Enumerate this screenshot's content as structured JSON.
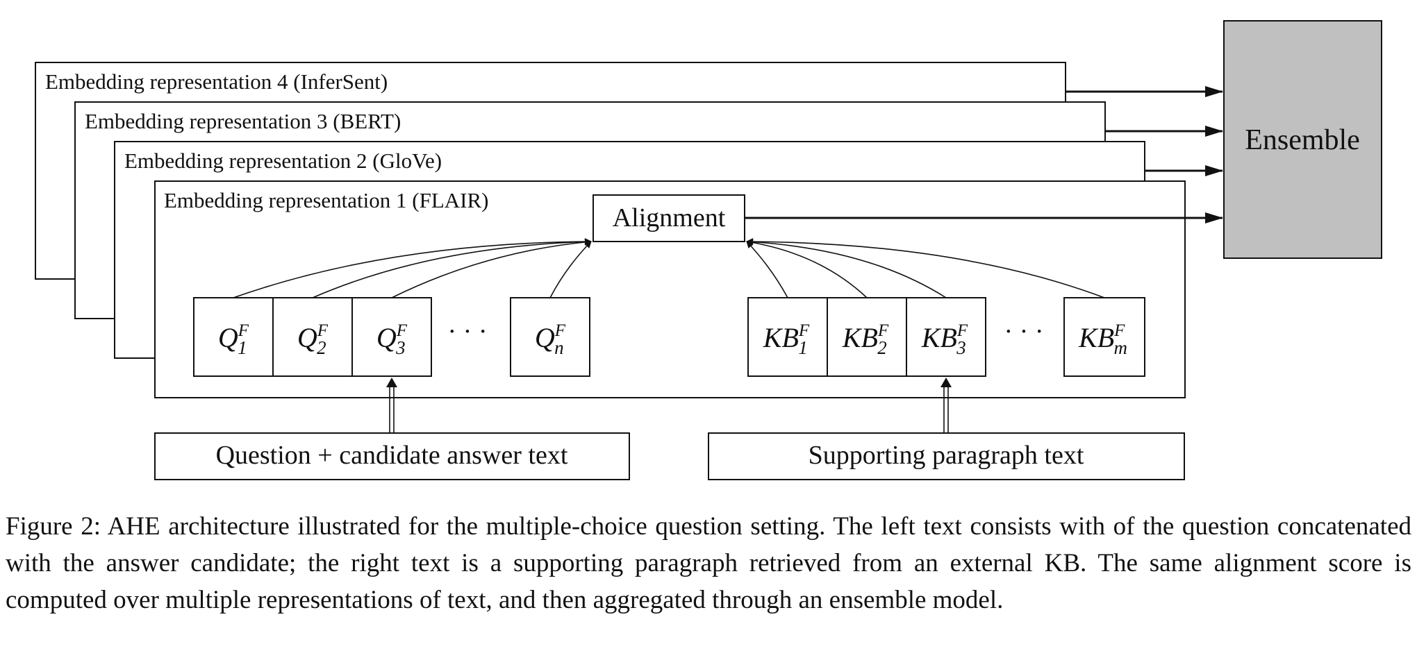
{
  "figure": {
    "representations": [
      "Embedding representation 4 (InferSent)",
      "Embedding representation 3 (BERT)",
      "Embedding representation 2 (GloVe)",
      "Embedding representation 1 (FLAIR)"
    ],
    "alignment_label": "Alignment",
    "ensemble_label": "Ensemble",
    "ensemble_fill": "#c0c0c0",
    "question_tokens": [
      {
        "base": "Q",
        "sup": "F",
        "sub": "1"
      },
      {
        "base": "Q",
        "sup": "F",
        "sub": "2"
      },
      {
        "base": "Q",
        "sup": "F",
        "sub": "3"
      },
      {
        "base": "Q",
        "sup": "F",
        "sub": "n"
      }
    ],
    "kb_tokens": [
      {
        "base": "KB",
        "sup": "F",
        "sub": "1"
      },
      {
        "base": "KB",
        "sup": "F",
        "sub": "2"
      },
      {
        "base": "KB",
        "sup": "F",
        "sub": "3"
      },
      {
        "base": "KB",
        "sup": "F",
        "sub": "m"
      }
    ],
    "ellipsis": "· · ·",
    "left_input_label": "Question + candidate answer text",
    "right_input_label": "Supporting paragraph text"
  },
  "caption": "Figure 2: AHE architecture illustrated for the multiple-choice question setting. The left text consists with of the question concatenated with the answer candidate; the right text is a supporting paragraph retrieved from an external KB. The same alignment score is computed over multiple representations of text, and then aggregated through an ensemble model."
}
